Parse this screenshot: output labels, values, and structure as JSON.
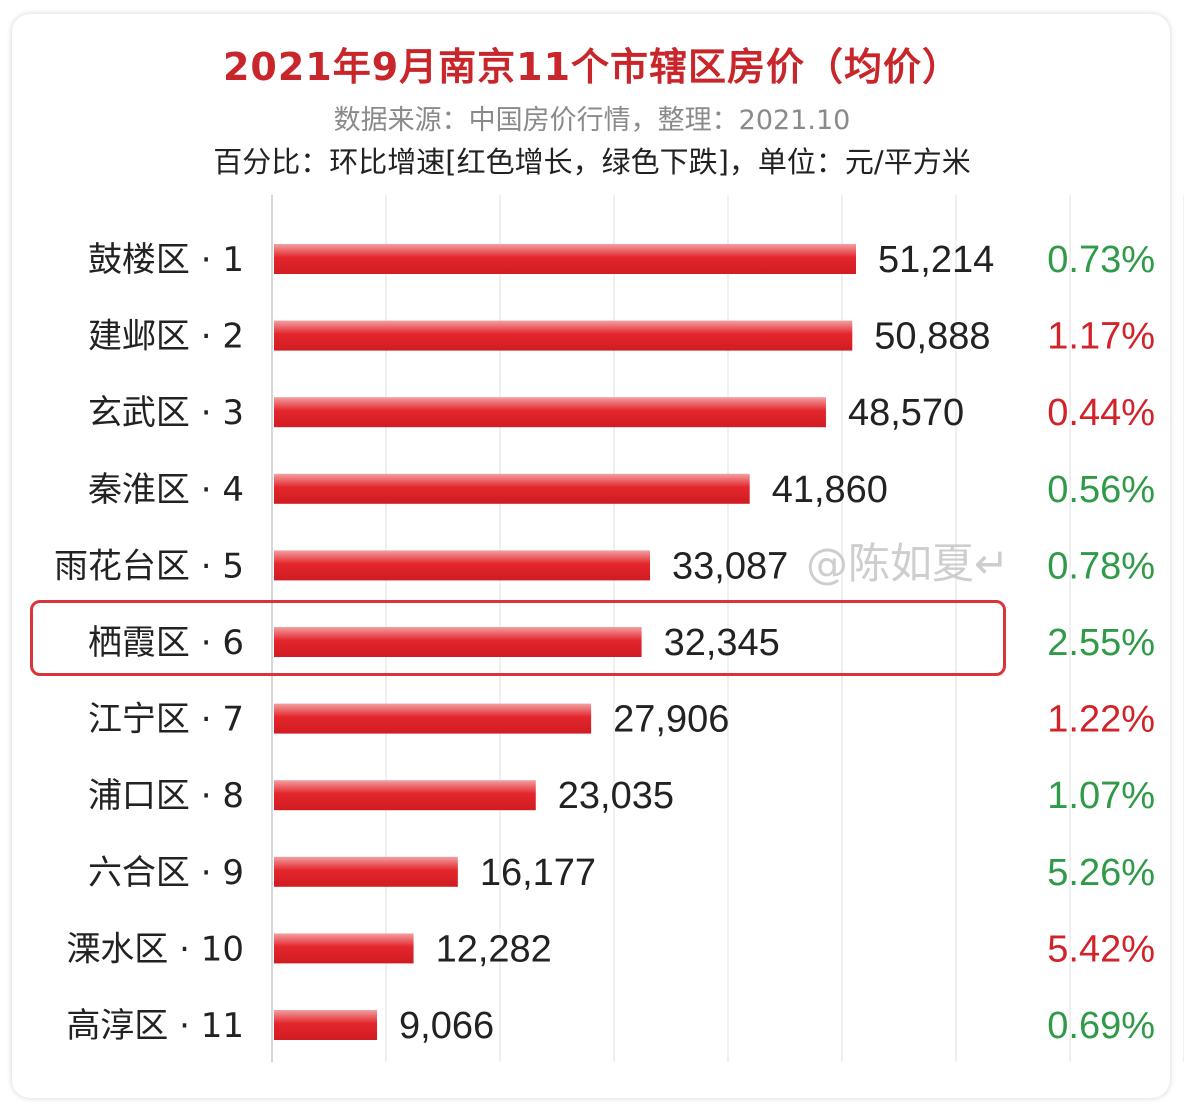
{
  "header": {
    "title": "2021年9月南京11个市辖区房价（均价）",
    "source": "数据来源：中国房价行情，整理：2021.10",
    "subtitle": "百分比：环比增速[红色增长，绿色下跌]，单位：元/平方米"
  },
  "watermark": "@陈如夏↵",
  "colors": {
    "bar": "#e3262c",
    "increase": "#d2232a",
    "decrease": "#2f9a48",
    "highlight": "#d8343a"
  },
  "chart_data": {
    "type": "bar",
    "orientation": "horizontal",
    "categories": [
      "鼓楼区 · 1",
      "建邺区 · 2",
      "玄武区 · 3",
      "秦淮区 · 4",
      "雨花台区 · 5",
      "栖霞区 · 6",
      "江宁区 · 7",
      "浦口区 · 8",
      "六合区 · 9",
      "溧水区 · 10",
      "高淳区 · 11"
    ],
    "values": [
      51214,
      50888,
      48570,
      41860,
      33087,
      32345,
      27906,
      23035,
      16177,
      12282,
      9066
    ],
    "value_labels": [
      "51,214",
      "50,888",
      "48,570",
      "41,860",
      "33,087",
      "32,345",
      "27,906",
      "23,035",
      "16,177",
      "12,282",
      "9,066"
    ],
    "change_labels": [
      "0.73%",
      "1.17%",
      "0.44%",
      "0.56%",
      "0.78%",
      "2.55%",
      "1.22%",
      "1.07%",
      "5.26%",
      "5.42%",
      "0.69%"
    ],
    "change_direction": [
      "down",
      "up",
      "up",
      "down",
      "down",
      "down",
      "up",
      "down",
      "down",
      "up",
      "down"
    ],
    "highlighted_category": "栖霞区 · 6",
    "grid": true,
    "legend": "none"
  }
}
